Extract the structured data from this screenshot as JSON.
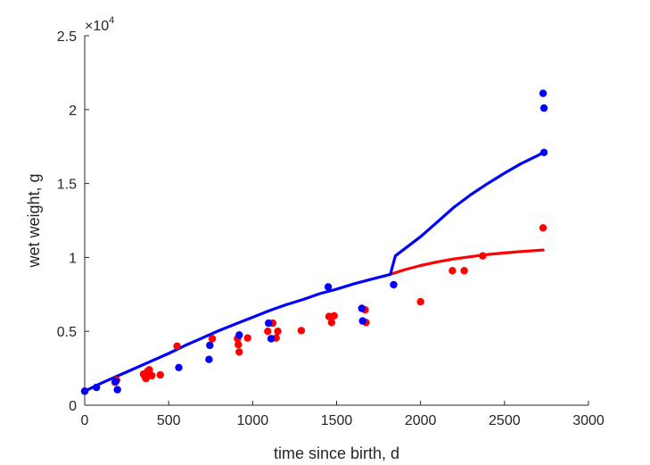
{
  "chart_data": {
    "type": "scatter",
    "xlabel": "time since birth, d",
    "ylabel": "wet weight, g",
    "xlim": [
      0,
      3000
    ],
    "ylim": [
      0,
      25000
    ],
    "xticks": [
      0,
      500,
      1000,
      1500,
      2000,
      2500,
      3000
    ],
    "xtick_labels": [
      "0",
      "500",
      "1000",
      "1500",
      "2000",
      "2500",
      "3000"
    ],
    "yticks": [
      0,
      5000,
      10000,
      15000,
      20000,
      25000
    ],
    "ytick_labels": [
      "0",
      "0.5",
      "1",
      "1.5",
      "2",
      "2.5"
    ],
    "y_exponent_label": "×10",
    "y_exponent_power": "4",
    "grid": false,
    "colors": {
      "red": "#ff0000",
      "blue": "#0000ff",
      "axis": "#262626"
    },
    "series": [
      {
        "kind": "points",
        "color": "red",
        "points": [
          [
            0,
            950
          ],
          [
            180,
            1550
          ],
          [
            190,
            1700
          ],
          [
            350,
            2100
          ],
          [
            360,
            1900
          ],
          [
            365,
            1800
          ],
          [
            375,
            2300
          ],
          [
            385,
            2400
          ],
          [
            400,
            2000
          ],
          [
            450,
            2050
          ],
          [
            550,
            4000
          ],
          [
            760,
            4500
          ],
          [
            910,
            4500
          ],
          [
            915,
            4100
          ],
          [
            920,
            3600
          ],
          [
            970,
            4550
          ],
          [
            1090,
            5000
          ],
          [
            1120,
            5550
          ],
          [
            1140,
            4550
          ],
          [
            1150,
            5000
          ],
          [
            1290,
            5050
          ],
          [
            1455,
            6000
          ],
          [
            1470,
            5600
          ],
          [
            1485,
            6050
          ],
          [
            1670,
            6450
          ],
          [
            1675,
            5600
          ],
          [
            2000,
            7000
          ],
          [
            2190,
            9100
          ],
          [
            2260,
            9100
          ],
          [
            2370,
            10100
          ],
          [
            2730,
            12000
          ]
        ]
      },
      {
        "kind": "points",
        "color": "blue",
        "points": [
          [
            0,
            950
          ],
          [
            70,
            1200
          ],
          [
            185,
            1600
          ],
          [
            195,
            1050
          ],
          [
            560,
            2550
          ],
          [
            740,
            3100
          ],
          [
            745,
            4050
          ],
          [
            920,
            4750
          ],
          [
            1095,
            5550
          ],
          [
            1110,
            4500
          ],
          [
            1450,
            8000
          ],
          [
            1650,
            6550
          ],
          [
            1655,
            5700
          ],
          [
            1840,
            8150
          ],
          [
            2730,
            21100
          ],
          [
            2735,
            20100
          ],
          [
            2735,
            17100
          ]
        ]
      },
      {
        "kind": "line",
        "color": "red",
        "points": [
          [
            1820,
            8850
          ],
          [
            1900,
            9150
          ],
          [
            2000,
            9450
          ],
          [
            2100,
            9700
          ],
          [
            2200,
            9900
          ],
          [
            2300,
            10050
          ],
          [
            2400,
            10200
          ],
          [
            2500,
            10300
          ],
          [
            2600,
            10400
          ],
          [
            2730,
            10500
          ]
        ]
      },
      {
        "kind": "line",
        "color": "blue",
        "points": [
          [
            0,
            950
          ],
          [
            100,
            1500
          ],
          [
            200,
            2000
          ],
          [
            300,
            2500
          ],
          [
            400,
            3000
          ],
          [
            500,
            3500
          ],
          [
            600,
            4050
          ],
          [
            700,
            4550
          ],
          [
            800,
            5050
          ],
          [
            900,
            5500
          ],
          [
            1000,
            5950
          ],
          [
            1100,
            6400
          ],
          [
            1200,
            6800
          ],
          [
            1300,
            7150
          ],
          [
            1400,
            7550
          ],
          [
            1500,
            7850
          ],
          [
            1600,
            8200
          ],
          [
            1700,
            8500
          ],
          [
            1820,
            8850
          ],
          [
            1850,
            10100
          ],
          [
            2000,
            11400
          ],
          [
            2100,
            12400
          ],
          [
            2200,
            13400
          ],
          [
            2300,
            14250
          ],
          [
            2400,
            15000
          ],
          [
            2500,
            15700
          ],
          [
            2600,
            16350
          ],
          [
            2700,
            16900
          ],
          [
            2730,
            17100
          ]
        ]
      }
    ]
  }
}
